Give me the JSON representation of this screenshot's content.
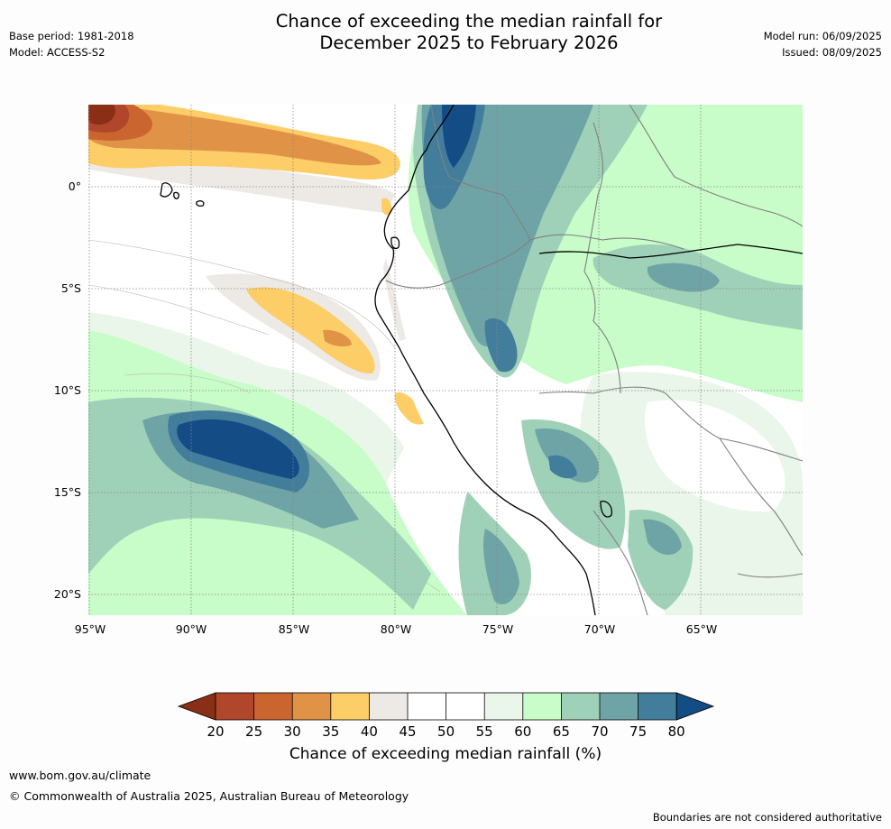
{
  "title": {
    "line1": "Chance of exceeding the median rainfall for",
    "line2": "December 2025 to February 2026"
  },
  "meta_left": {
    "base_period": "Base period: 1981-2018",
    "model": "Model: ACCESS-S2"
  },
  "meta_right": {
    "model_run": "Model run: 06/09/2025",
    "issued": "Issued: 08/09/2025"
  },
  "axes": {
    "lat_labels": [
      "0°",
      "5°S",
      "10°S",
      "15°S",
      "20°S"
    ],
    "lon_labels": [
      "95°W",
      "90°W",
      "85°W",
      "80°W",
      "75°W",
      "70°W",
      "65°W"
    ]
  },
  "colorbar": {
    "ticks": [
      "20",
      "25",
      "30",
      "35",
      "40",
      "45",
      "50",
      "55",
      "60",
      "65",
      "70",
      "75",
      "80"
    ],
    "colors": {
      "below20": "#8b2e16",
      "20-25": "#b0472a",
      "25-30": "#cb6530",
      "30-35": "#e09347",
      "35-40": "#fdcd68",
      "40-45": "#edeae6",
      "45-50": "#ffffff",
      "50-55": "#ffffff",
      "55-60": "#eaf6ea",
      "60-65": "#c8fcc8",
      "65-70": "#9fd1b8",
      "70-75": "#6fa4a6",
      "75-80": "#427d9c",
      "above80": "#144c86"
    },
    "label": "Chance of exceeding median rainfall (%)"
  },
  "footer": {
    "website": "www.bom.gov.au/climate",
    "copyright": "© Commonwealth of Australia 2025, Australian Bureau of Meteorology",
    "disclaimer": "Boundaries are not considered authoritative"
  }
}
